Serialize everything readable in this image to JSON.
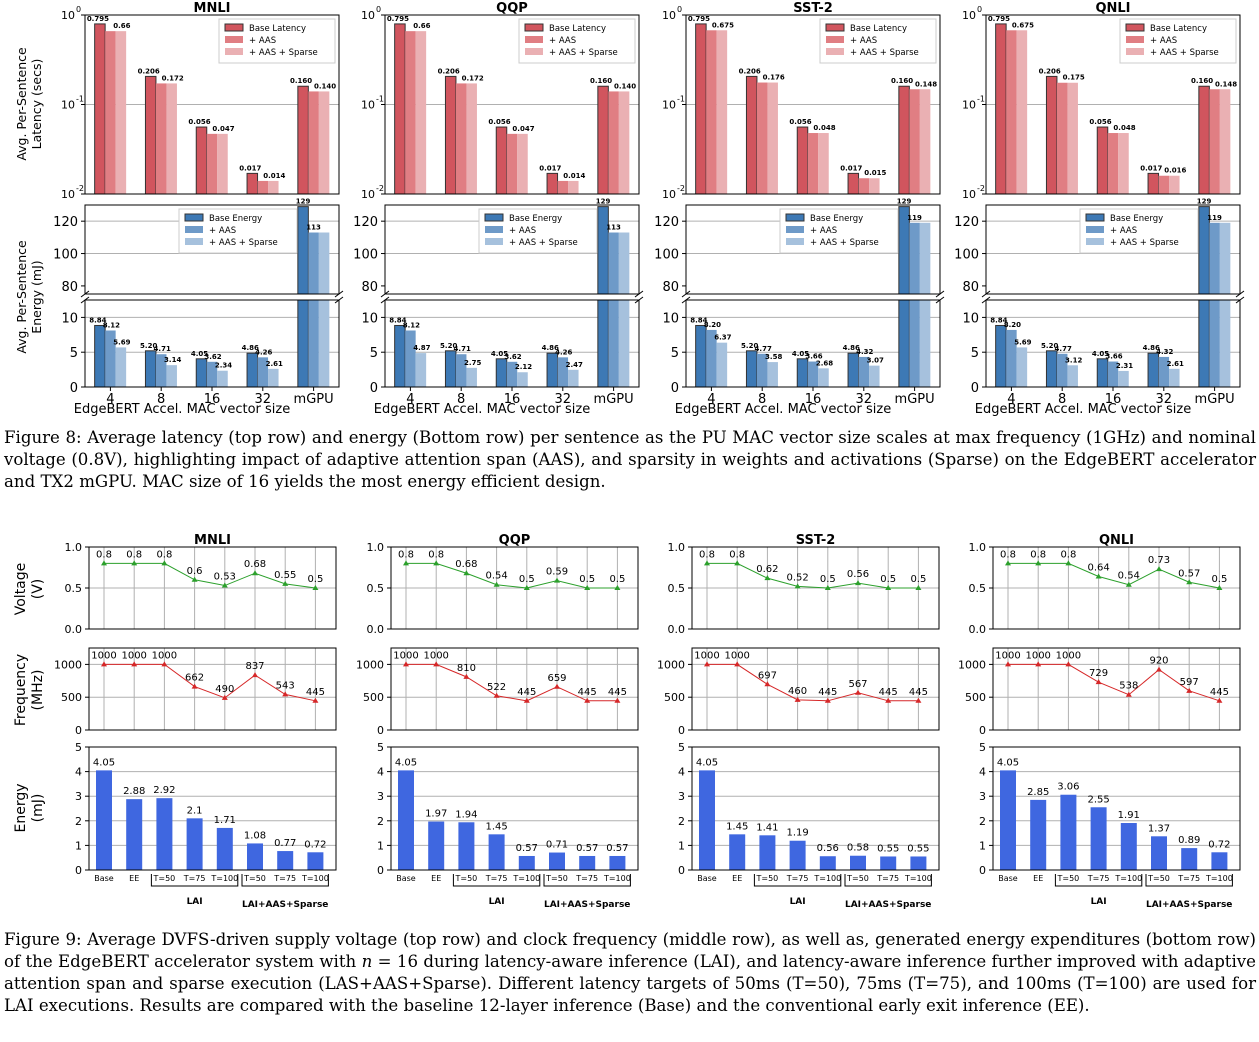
{
  "figure8": {
    "caption": "Figure 8: Average latency (top row) and energy (Bottom row) per sentence as the PU MAC vector size scales at max frequency (1GHz) and nominal voltage (0.8V), highlighting impact of adaptive attention span (AAS), and sparsity in weights and activations (Sparse) on the EdgeBERT accelerator and TX2 mGPU. MAC size of 16 yields the most energy efficient design.",
    "latency_ylabel": [
      "Avg. Per-Sentence",
      "Latency (secs)"
    ],
    "energy_ylabel": [
      "Avg. Per-Sentence",
      "Energy (mJ)"
    ],
    "xlabel": "EdgeBERT Accel. MAC vector size",
    "latency_ticks": [
      "10",
      "10",
      "10"
    ],
    "latency_tick_exps": [
      "0",
      "-1",
      "-2"
    ],
    "energy_upper_ticks": [
      "80",
      "100",
      "120"
    ],
    "energy_lower_ticks": [
      "0",
      "5",
      "10"
    ],
    "latency_legend": [
      "Base Latency",
      "+ AAS",
      "+ AAS + Sparse"
    ],
    "energy_legend": [
      "Base Energy",
      "+ AAS",
      "+ AAS + Sparse"
    ]
  },
  "figure9": {
    "caption_parts": [
      "Figure 9: Average DVFS-driven supply voltage (top row) and clock frequency (middle row), as well as, generated energy expenditures (bottom row) of the EdgeBERT accelerator system with ",
      "n",
      " = 16 during latency-aware inference (LAI), and latency-aware inference further improved with adaptive attention span and sparse execution (LAS+AAS+Sparse). Different latency targets of 50ms (T=50), 75ms (T=75), and 100ms (T=100) are used for LAI executions. Results are compared with the baseline 12-layer inference (Base) and the conventional early exit inference (EE)."
    ],
    "voltage_ylabel": [
      "Voltage",
      "(V)"
    ],
    "freq_ylabel": [
      "Frequency",
      "(MHz)"
    ],
    "energy_ylabel": [
      "Energy",
      "(mJ)"
    ],
    "voltage_ticks": [
      "0.0",
      "0.5",
      "1.0"
    ],
    "freq_ticks": [
      "0",
      "500",
      "1000"
    ],
    "energy_ticks": [
      "0",
      "1",
      "2",
      "3",
      "4",
      "5"
    ],
    "x_labels": [
      "Base",
      "EE",
      "T=50",
      "T=75",
      "T=100",
      "T=50",
      "T=75",
      "T=100"
    ],
    "group_labels": [
      "LAI",
      "LAI+AAS+Sparse"
    ]
  },
  "chart_data": [
    {
      "type": "bar",
      "title": "MNLI",
      "panel": "latency",
      "categories": [
        "4",
        "8",
        "16",
        "32",
        "mGPU"
      ],
      "ylabel": "Avg. Per-Sentence Latency (secs)",
      "yscale": "log",
      "ylim": [
        0.01,
        1
      ],
      "series": [
        {
          "name": "Base Latency",
          "values": [
            0.795,
            0.206,
            0.056,
            0.017,
            0.16
          ],
          "labels": [
            "0.795",
            "0.206",
            "0.056",
            "0.017",
            "0.160"
          ]
        },
        {
          "name": "+ AAS",
          "values": [
            0.66,
            0.172,
            0.047,
            0.014,
            0.14
          ],
          "labels": [
            "",
            "",
            "",
            "",
            ""
          ]
        },
        {
          "name": "+ AAS + Sparse",
          "values": [
            0.66,
            0.172,
            0.047,
            0.014,
            0.14
          ],
          "labels": [
            "0.66",
            "0.172",
            "0.047",
            "0.014",
            "0.140"
          ]
        }
      ]
    },
    {
      "type": "bar",
      "title": "QQP",
      "panel": "latency",
      "categories": [
        "4",
        "8",
        "16",
        "32",
        "mGPU"
      ],
      "yscale": "log",
      "ylim": [
        0.01,
        1
      ],
      "series": [
        {
          "name": "Base Latency",
          "values": [
            0.795,
            0.206,
            0.056,
            0.017,
            0.16
          ],
          "labels": [
            "0.795",
            "0.206",
            "0.056",
            "0.017",
            "0.160"
          ]
        },
        {
          "name": "+ AAS",
          "values": [
            0.66,
            0.172,
            0.047,
            0.014,
            0.14
          ],
          "labels": [
            "",
            "",
            "",
            "",
            ""
          ]
        },
        {
          "name": "+ AAS + Sparse",
          "values": [
            0.66,
            0.172,
            0.047,
            0.014,
            0.14
          ],
          "labels": [
            "0.66",
            "0.172",
            "0.047",
            "0.014",
            "0.140"
          ]
        }
      ]
    },
    {
      "type": "bar",
      "title": "SST-2",
      "panel": "latency",
      "categories": [
        "4",
        "8",
        "16",
        "32",
        "mGPU"
      ],
      "yscale": "log",
      "ylim": [
        0.01,
        1
      ],
      "series": [
        {
          "name": "Base Latency",
          "values": [
            0.795,
            0.206,
            0.056,
            0.017,
            0.16
          ],
          "labels": [
            "0.795",
            "0.206",
            "0.056",
            "0.017",
            "0.160"
          ]
        },
        {
          "name": "+ AAS",
          "values": [
            0.675,
            0.176,
            0.048,
            0.015,
            0.148
          ],
          "labels": [
            "",
            "",
            "",
            "",
            ""
          ]
        },
        {
          "name": "+ AAS + Sparse",
          "values": [
            0.675,
            0.176,
            0.048,
            0.015,
            0.148
          ],
          "labels": [
            "0.675",
            "0.176",
            "0.048",
            "0.015",
            "0.148"
          ]
        }
      ]
    },
    {
      "type": "bar",
      "title": "QNLI",
      "panel": "latency",
      "categories": [
        "4",
        "8",
        "16",
        "32",
        "mGPU"
      ],
      "yscale": "log",
      "ylim": [
        0.01,
        1
      ],
      "series": [
        {
          "name": "Base Latency",
          "values": [
            0.795,
            0.206,
            0.056,
            0.017,
            0.16
          ],
          "labels": [
            "0.795",
            "0.206",
            "0.056",
            "0.017",
            "0.160"
          ]
        },
        {
          "name": "+ AAS",
          "values": [
            0.675,
            0.175,
            0.048,
            0.016,
            0.148
          ],
          "labels": [
            "",
            "",
            "",
            "",
            ""
          ]
        },
        {
          "name": "+ AAS + Sparse",
          "values": [
            0.675,
            0.175,
            0.048,
            0.016,
            0.148
          ],
          "labels": [
            "0.675",
            "0.175",
            "0.048",
            "0.016",
            "0.148"
          ]
        }
      ]
    },
    {
      "type": "bar",
      "title": "MNLI",
      "panel": "energy",
      "categories": [
        "4",
        "8",
        "16",
        "32",
        "mGPU"
      ],
      "xlabel": "EdgeBERT Accel. MAC vector size",
      "ylabel": "Avg. Per-Sentence Energy (mJ)",
      "broken_axis": [
        [
          0,
          12
        ],
        [
          80,
          130
        ]
      ],
      "series": [
        {
          "name": "Base Energy",
          "values": [
            8.84,
            5.2,
            4.05,
            4.86,
            129
          ],
          "labels": [
            "8.84",
            "5.20",
            "4.05",
            "4.86",
            "129"
          ]
        },
        {
          "name": "+ AAS",
          "values": [
            8.12,
            4.71,
            3.62,
            4.26,
            113
          ],
          "labels": [
            "8.12",
            "4.71",
            "3.62",
            "4.26",
            "113"
          ]
        },
        {
          "name": "+ AAS + Sparse",
          "values": [
            5.69,
            3.14,
            2.34,
            2.61,
            113
          ],
          "labels": [
            "5.69",
            "3.14",
            "2.34",
            "2.61",
            ""
          ]
        }
      ]
    },
    {
      "type": "bar",
      "title": "QQP",
      "panel": "energy",
      "categories": [
        "4",
        "8",
        "16",
        "32",
        "mGPU"
      ],
      "xlabel": "EdgeBERT Accel. MAC vector size",
      "broken_axis": [
        [
          0,
          12
        ],
        [
          80,
          130
        ]
      ],
      "series": [
        {
          "name": "Base Energy",
          "values": [
            8.84,
            5.2,
            4.05,
            4.86,
            129
          ],
          "labels": [
            "8.84",
            "5.20",
            "4.05",
            "4.86",
            "129"
          ]
        },
        {
          "name": "+ AAS",
          "values": [
            8.12,
            4.71,
            3.62,
            4.26,
            113
          ],
          "labels": [
            "8.12",
            "4.71",
            "3.62",
            "4.26",
            "113"
          ]
        },
        {
          "name": "+ AAS + Sparse",
          "values": [
            4.87,
            2.75,
            2.12,
            2.47,
            113
          ],
          "labels": [
            "4.87",
            "2.75",
            "2.12",
            "2.47",
            ""
          ]
        }
      ]
    },
    {
      "type": "bar",
      "title": "SST-2",
      "panel": "energy",
      "categories": [
        "4",
        "8",
        "16",
        "32",
        "mGPU"
      ],
      "xlabel": "EdgeBERT Accel. MAC vector size",
      "broken_axis": [
        [
          0,
          12
        ],
        [
          80,
          130
        ]
      ],
      "series": [
        {
          "name": "Base Energy",
          "values": [
            8.84,
            5.2,
            4.05,
            4.86,
            129
          ],
          "labels": [
            "8.84",
            "5.20",
            "4.05",
            "4.86",
            "129"
          ]
        },
        {
          "name": "+ AAS",
          "values": [
            8.2,
            4.77,
            3.66,
            4.32,
            119
          ],
          "labels": [
            "8.20",
            "4.77",
            "3.66",
            "4.32",
            "119"
          ]
        },
        {
          "name": "+ AAS + Sparse",
          "values": [
            6.37,
            3.58,
            2.68,
            3.07,
            119
          ],
          "labels": [
            "6.37",
            "3.58",
            "2.68",
            "3.07",
            ""
          ]
        }
      ]
    },
    {
      "type": "bar",
      "title": "QNLI",
      "panel": "energy",
      "categories": [
        "4",
        "8",
        "16",
        "32",
        "mGPU"
      ],
      "xlabel": "EdgeBERT Accel. MAC vector size",
      "broken_axis": [
        [
          0,
          12
        ],
        [
          80,
          130
        ]
      ],
      "series": [
        {
          "name": "Base Energy",
          "values": [
            8.84,
            5.2,
            4.05,
            4.86,
            129
          ],
          "labels": [
            "8.84",
            "5.20",
            "4.05",
            "4.86",
            "129"
          ]
        },
        {
          "name": "+ AAS",
          "values": [
            8.2,
            4.77,
            3.66,
            4.32,
            119
          ],
          "labels": [
            "8.20",
            "4.77",
            "3.66",
            "4.32",
            "119"
          ]
        },
        {
          "name": "+ AAS + Sparse",
          "values": [
            5.69,
            3.12,
            2.31,
            2.61,
            119
          ],
          "labels": [
            "5.69",
            "3.12",
            "2.31",
            "2.61",
            ""
          ]
        }
      ]
    },
    {
      "type": "line",
      "title": "MNLI",
      "panel": "voltage",
      "ylabel": "Voltage (V)",
      "ylim": [
        0,
        1
      ],
      "x": [
        "Base",
        "EE",
        "T=50",
        "T=75",
        "T=100",
        "T=50",
        "T=75",
        "T=100"
      ],
      "values": [
        0.8,
        0.8,
        0.8,
        0.6,
        0.53,
        0.68,
        0.55,
        0.5
      ],
      "labels": [
        "0.8",
        "0.8",
        "0.8",
        "0.6",
        "0.53",
        "0.68",
        "0.55",
        "0.5"
      ]
    },
    {
      "type": "line",
      "title": "QQP",
      "panel": "voltage",
      "ylim": [
        0,
        1
      ],
      "x": [
        "Base",
        "EE",
        "T=50",
        "T=75",
        "T=100",
        "T=50",
        "T=75",
        "T=100"
      ],
      "values": [
        0.8,
        0.8,
        0.68,
        0.54,
        0.5,
        0.59,
        0.5,
        0.5
      ],
      "labels": [
        "0.8",
        "0.8",
        "0.68",
        "0.54",
        "0.5",
        "0.59",
        "0.5",
        "0.5"
      ]
    },
    {
      "type": "line",
      "title": "SST-2",
      "panel": "voltage",
      "ylim": [
        0,
        1
      ],
      "x": [
        "Base",
        "EE",
        "T=50",
        "T=75",
        "T=100",
        "T=50",
        "T=75",
        "T=100"
      ],
      "values": [
        0.8,
        0.8,
        0.62,
        0.52,
        0.5,
        0.56,
        0.5,
        0.5
      ],
      "labels": [
        "0.8",
        "0.8",
        "0.62",
        "0.52",
        "0.5",
        "0.56",
        "0.5",
        "0.5"
      ]
    },
    {
      "type": "line",
      "title": "QNLI",
      "panel": "voltage",
      "ylim": [
        0,
        1
      ],
      "x": [
        "Base",
        "EE",
        "T=50",
        "T=75",
        "T=100",
        "T=50",
        "T=75",
        "T=100"
      ],
      "values": [
        0.8,
        0.8,
        0.8,
        0.64,
        0.54,
        0.73,
        0.57,
        0.5
      ],
      "labels": [
        "0.8",
        "0.8",
        "0.8",
        "0.64",
        "0.54",
        "0.73",
        "0.57",
        "0.5"
      ]
    },
    {
      "type": "line",
      "title": "MNLI",
      "panel": "frequency",
      "ylabel": "Frequency (MHz)",
      "ylim": [
        0,
        1250
      ],
      "x": [
        "Base",
        "EE",
        "T=50",
        "T=75",
        "T=100",
        "T=50",
        "T=75",
        "T=100"
      ],
      "values": [
        1000,
        1000,
        1000,
        662,
        490,
        837,
        543,
        445
      ],
      "labels": [
        "1000",
        "1000",
        "1000",
        "662",
        "490",
        "837",
        "543",
        "445"
      ]
    },
    {
      "type": "line",
      "title": "QQP",
      "panel": "frequency",
      "ylim": [
        0,
        1250
      ],
      "x": [
        "Base",
        "EE",
        "T=50",
        "T=75",
        "T=100",
        "T=50",
        "T=75",
        "T=100"
      ],
      "values": [
        1000,
        1000,
        810,
        522,
        445,
        659,
        445,
        445
      ],
      "labels": [
        "1000",
        "1000",
        "810",
        "522",
        "445",
        "659",
        "445",
        "445"
      ]
    },
    {
      "type": "line",
      "title": "SST-2",
      "panel": "frequency",
      "ylim": [
        0,
        1250
      ],
      "x": [
        "Base",
        "EE",
        "T=50",
        "T=75",
        "T=100",
        "T=50",
        "T=75",
        "T=100"
      ],
      "values": [
        1000,
        1000,
        697,
        460,
        445,
        567,
        445,
        445
      ],
      "labels": [
        "1000",
        "1000",
        "697",
        "460",
        "445",
        "567",
        "445",
        "445"
      ]
    },
    {
      "type": "line",
      "title": "QNLI",
      "panel": "frequency",
      "ylim": [
        0,
        1250
      ],
      "x": [
        "Base",
        "EE",
        "T=50",
        "T=75",
        "T=100",
        "T=50",
        "T=75",
        "T=100"
      ],
      "values": [
        1000,
        1000,
        1000,
        729,
        538,
        920,
        597,
        445
      ],
      "labels": [
        "1000",
        "1000",
        "1000",
        "729",
        "538",
        "920",
        "597",
        "445"
      ]
    },
    {
      "type": "bar",
      "title": "MNLI",
      "panel": "energy_lai",
      "ylabel": "Energy (mJ)",
      "ylim": [
        0,
        5
      ],
      "categories": [
        "Base",
        "EE",
        "T=50",
        "T=75",
        "T=100",
        "T=50",
        "T=75",
        "T=100"
      ],
      "values": [
        4.05,
        2.88,
        2.92,
        2.1,
        1.71,
        1.08,
        0.77,
        0.72
      ],
      "labels": [
        "4.05",
        "2.88",
        "2.92",
        "2.1",
        "1.71",
        "1.08",
        "0.77",
        "0.72"
      ]
    },
    {
      "type": "bar",
      "title": "QQP",
      "panel": "energy_lai",
      "ylim": [
        0,
        5
      ],
      "categories": [
        "Base",
        "EE",
        "T=50",
        "T=75",
        "T=100",
        "T=50",
        "T=75",
        "T=100"
      ],
      "values": [
        4.05,
        1.97,
        1.94,
        1.45,
        0.57,
        0.71,
        0.57,
        0.57
      ],
      "labels": [
        "4.05",
        "1.97",
        "1.94",
        "1.45",
        "0.57",
        "0.71",
        "0.57",
        "0.57"
      ]
    },
    {
      "type": "bar",
      "title": "SST-2",
      "panel": "energy_lai",
      "ylim": [
        0,
        5
      ],
      "categories": [
        "Base",
        "EE",
        "T=50",
        "T=75",
        "T=100",
        "T=50",
        "T=75",
        "T=100"
      ],
      "values": [
        4.05,
        1.45,
        1.41,
        1.19,
        0.56,
        0.58,
        0.55,
        0.55
      ],
      "labels": [
        "4.05",
        "1.45",
        "1.41",
        "1.19",
        "0.56",
        "0.58",
        "0.55",
        "0.55"
      ]
    },
    {
      "type": "bar",
      "title": "QNLI",
      "panel": "energy_lai",
      "ylim": [
        0,
        5
      ],
      "categories": [
        "Base",
        "EE",
        "T=50",
        "T=75",
        "T=100",
        "T=50",
        "T=75",
        "T=100"
      ],
      "values": [
        4.05,
        2.85,
        3.06,
        2.55,
        1.91,
        1.37,
        0.89,
        0.72
      ],
      "labels": [
        "4.05",
        "2.85",
        "3.06",
        "2.55",
        "1.91",
        "1.37",
        "0.89",
        "0.72"
      ]
    }
  ],
  "colors": {
    "latency": [
      "#d1555e",
      "#e07e83",
      "#eab0b3"
    ],
    "energy": [
      "#3d79b5",
      "#6e9ac8",
      "#a6c1dd"
    ],
    "voltage_line": "#2ca02c",
    "frequency_line": "#d62728",
    "energy_lai_bar": "#3f67e0"
  }
}
